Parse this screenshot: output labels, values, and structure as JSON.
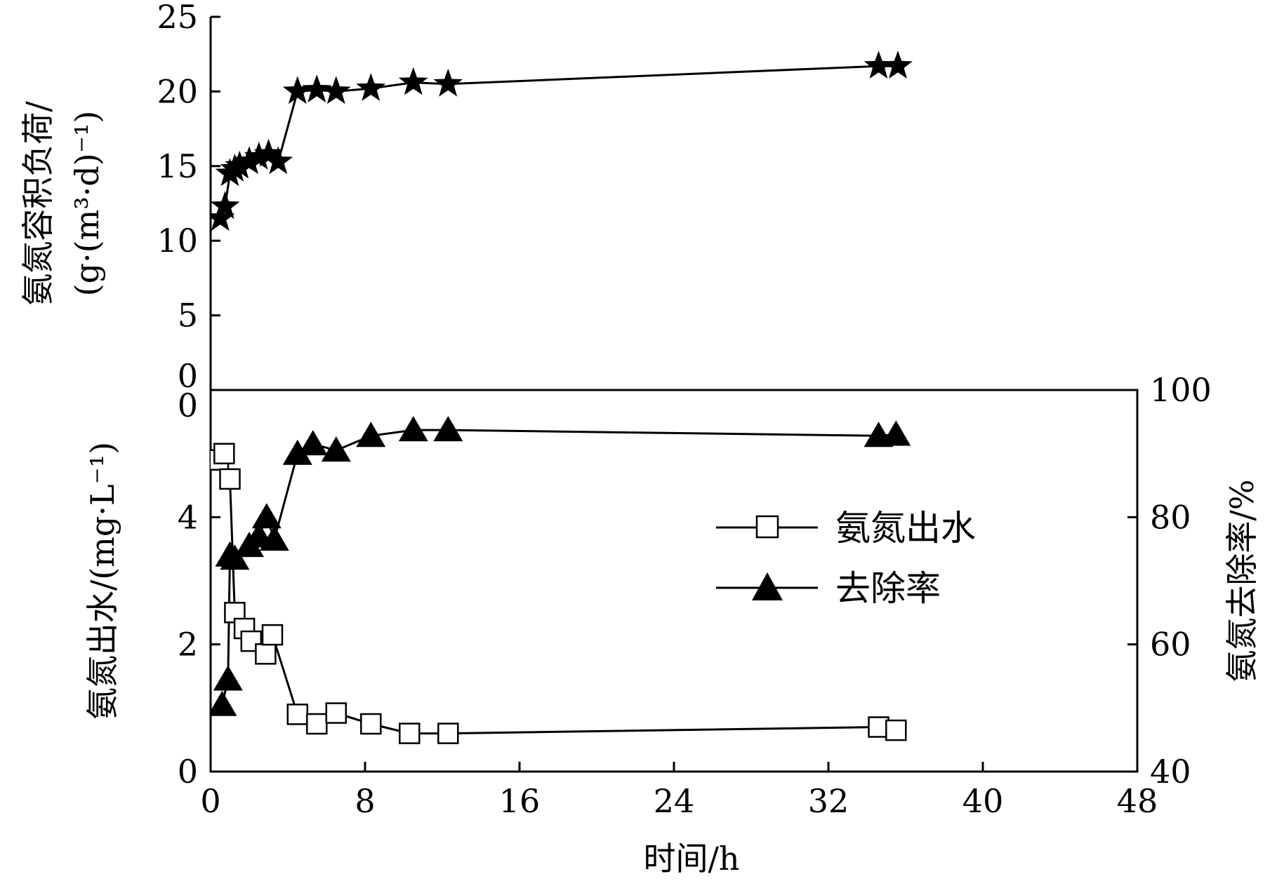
{
  "chart_data": [
    {
      "type": "scatter",
      "panel": "top",
      "xlabel": "",
      "ylabel_line1": "氨氮容积负荷/",
      "ylabel_line2": "(g·(m³·d)⁻¹)",
      "xlim": [
        0,
        48
      ],
      "ylim": [
        0,
        25
      ],
      "yticks": [
        "0",
        "5",
        "10",
        "15",
        "20",
        "25"
      ],
      "series": [
        {
          "marker": "star",
          "x": [
            0.5,
            0.75,
            1.0,
            1.25,
            1.5,
            2.0,
            2.5,
            3.0,
            3.5,
            4.5,
            5.5,
            6.5,
            8.3,
            10.5,
            12.3,
            34.6,
            35.6
          ],
          "y": [
            11.5,
            12.3,
            14.5,
            14.8,
            15.0,
            15.3,
            15.6,
            15.8,
            15.3,
            20.0,
            20.1,
            20.0,
            20.2,
            20.6,
            20.5,
            21.7,
            21.7
          ]
        }
      ]
    },
    {
      "type": "scatter",
      "panel": "bottom",
      "xlabel": "时间/h",
      "ylabel": "氨氮出水/(mg·L⁻¹)",
      "y2label": "氨氮去除率/%",
      "xlim": [
        0,
        48
      ],
      "xticks": [
        "0",
        "8",
        "16",
        "24",
        "32",
        "40",
        "48"
      ],
      "ylim": [
        0,
        6
      ],
      "yticks": [
        "0",
        "2",
        "4"
      ],
      "top_tick": "0",
      "y2lim": [
        40,
        100
      ],
      "y2ticks": [
        "40",
        "60",
        "80",
        "100"
      ],
      "legend_position": "center-right",
      "series": [
        {
          "name": "氨氮出水",
          "marker": "open-square",
          "axis": "left",
          "x": [
            0.4,
            0.7,
            1.0,
            1.25,
            1.75,
            2.1,
            2.85,
            3.2,
            4.5,
            5.5,
            6.5,
            8.3,
            10.3,
            12.3,
            34.6,
            35.5
          ],
          "y": [
            4.9,
            5.0,
            4.6,
            2.5,
            2.25,
            2.05,
            1.85,
            2.15,
            0.9,
            0.75,
            0.92,
            0.75,
            0.6,
            0.6,
            0.7,
            0.65
          ]
        },
        {
          "name": "去除率",
          "marker": "filled-triangle",
          "axis": "right",
          "x": [
            0.6,
            0.9,
            1.0,
            1.25,
            2.0,
            2.5,
            2.9,
            3.3,
            4.5,
            5.3,
            6.5,
            8.3,
            10.5,
            12.3,
            34.6,
            35.5
          ],
          "y": [
            50.5,
            54.5,
            74.0,
            73.5,
            75.5,
            77.0,
            80.0,
            76.5,
            90.0,
            91.5,
            90.5,
            92.8,
            93.7,
            93.7,
            92.8,
            93.0
          ]
        }
      ]
    }
  ]
}
